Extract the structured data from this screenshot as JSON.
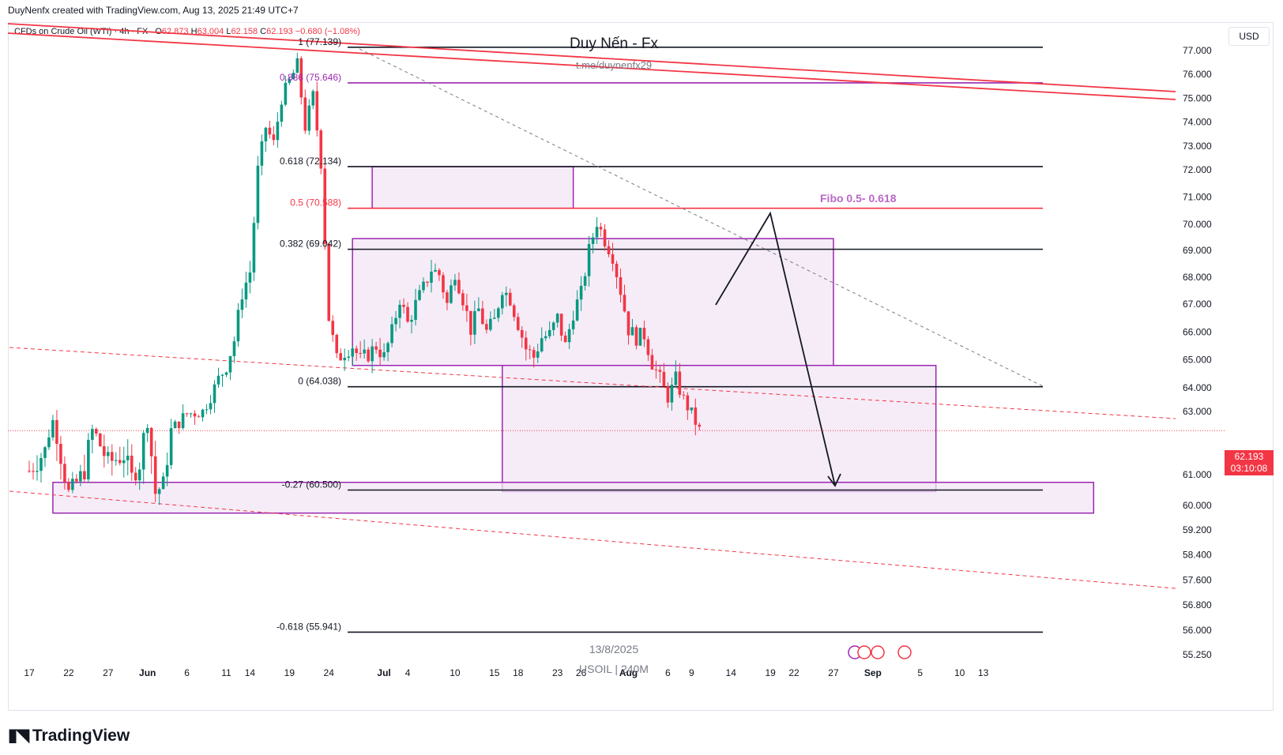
{
  "header": {
    "attribution": "DuyNenfx created with TradingView.com, Aug 13, 2025 21:49 UTC+7"
  },
  "legend": {
    "symbol": "CFDs on Crude Oil (WTI) · 4h · FX",
    "o_label": "O",
    "o": "62.873",
    "h_label": "H",
    "h": "63.004",
    "l_label": "L",
    "l": "62.158",
    "c_label": "C",
    "c": "62.193",
    "change": "−0.680 (−1.08%)"
  },
  "watermark": {
    "title": "Duy Nến - Fx",
    "link": "t.me/duynenfx29"
  },
  "bottom_labels": {
    "date": "13/8/2025",
    "ticker": "USOIL | 240M"
  },
  "price_axis": {
    "currency": "USD",
    "current_price": "62.193",
    "countdown": "03:10:08"
  },
  "colors": {
    "up": "#089981",
    "down": "#f23645",
    "purple": "#9c27b0",
    "zone_fill": "#f3e5f5",
    "grid": "#e0e3eb",
    "text": "#131722"
  },
  "brand": "TradingView",
  "chart_data": {
    "type": "candlestick",
    "title": "CFDs on Crude Oil (WTI)",
    "timeframe": "4h",
    "y_ticks": [
      77.0,
      76.0,
      75.0,
      74.0,
      73.0,
      72.0,
      71.0,
      70.0,
      69.0,
      68.0,
      67.0,
      66.0,
      65.0,
      64.0,
      63.0,
      61.0,
      60.0,
      59.2,
      58.4,
      57.6,
      56.8,
      56.0,
      55.25
    ],
    "y_tick_labels": [
      "77.000",
      "76.000",
      "75.000",
      "74.000",
      "73.000",
      "72.000",
      "71.000",
      "70.000",
      "69.000",
      "68.000",
      "67.000",
      "66.000",
      "65.000",
      "64.000",
      "63.000",
      "61.000",
      "60.000",
      "59.200",
      "58.400",
      "57.600",
      "56.800",
      "56.000",
      "55.250"
    ],
    "x_ticks": [
      {
        "label": "17",
        "day": 0
      },
      {
        "label": "22",
        "day": 5
      },
      {
        "label": "27",
        "day": 10
      },
      {
        "label": "Jun",
        "day": 15
      },
      {
        "label": "6",
        "day": 20
      },
      {
        "label": "11",
        "day": 25
      },
      {
        "label": "14",
        "day": 28
      },
      {
        "label": "19",
        "day": 33
      },
      {
        "label": "24",
        "day": 38
      },
      {
        "label": "Jul",
        "day": 45
      },
      {
        "label": "4",
        "day": 48
      },
      {
        "label": "10",
        "day": 54
      },
      {
        "label": "15",
        "day": 59
      },
      {
        "label": "18",
        "day": 62
      },
      {
        "label": "23",
        "day": 67
      },
      {
        "label": "26",
        "day": 70
      },
      {
        "label": "Aug",
        "day": 76
      },
      {
        "label": "6",
        "day": 81
      },
      {
        "label": "9",
        "day": 84
      },
      {
        "label": "14",
        "day": 89
      },
      {
        "label": "19",
        "day": 94
      },
      {
        "label": "22",
        "day": 97
      },
      {
        "label": "27",
        "day": 102
      },
      {
        "label": "Sep",
        "day": 107
      },
      {
        "label": "5",
        "day": 113
      },
      {
        "label": "10",
        "day": 118
      },
      {
        "label": "13",
        "day": 121
      }
    ],
    "fib_levels": [
      {
        "label": "1 (77.139)",
        "value": 77.139,
        "color": "#131722"
      },
      {
        "label": "0.886 (75.646)",
        "value": 75.646,
        "color": "#9c27b0"
      },
      {
        "label": "0.618 (72.134)",
        "value": 72.134,
        "color": "#131722"
      },
      {
        "label": "0.5 (70.588)",
        "value": 70.588,
        "color": "#f23645"
      },
      {
        "label": "0.382 (69.042)",
        "value": 69.042,
        "color": "#131722"
      },
      {
        "label": "0 (64.038)",
        "value": 64.038,
        "color": "#131722"
      },
      {
        "label": "-0.27 (60.500)",
        "value": 60.5,
        "color": "#131722"
      },
      {
        "label": "-0.618 (55.941)",
        "value": 55.941,
        "color": "#131722"
      }
    ],
    "fib_zone_label": "Fibo 0.5- 0.618",
    "price_path": [
      [
        0,
        61.1
      ],
      [
        2,
        61.6
      ],
      [
        3,
        62.6
      ],
      [
        5,
        60.4
      ],
      [
        7,
        61.1
      ],
      [
        8,
        62.2
      ],
      [
        10,
        61.3
      ],
      [
        12,
        61.5
      ],
      [
        13,
        60.9
      ],
      [
        14,
        61.3
      ],
      [
        15,
        62.6
      ],
      [
        16,
        60.4
      ],
      [
        17,
        60.7
      ],
      [
        18,
        62.2
      ],
      [
        20,
        62.9
      ],
      [
        22,
        63.0
      ],
      [
        24,
        64.3
      ],
      [
        25,
        64.8
      ],
      [
        26,
        65.7
      ],
      [
        27,
        67.4
      ],
      [
        28,
        68.2
      ],
      [
        29,
        72.0
      ],
      [
        30,
        73.8
      ],
      [
        31,
        73.1
      ],
      [
        32,
        75.0
      ],
      [
        33,
        75.7
      ],
      [
        34,
        76.4
      ],
      [
        35,
        73.8
      ],
      [
        36,
        75.1
      ],
      [
        37,
        72.3
      ],
      [
        38,
        66.5
      ],
      [
        39,
        65.0
      ],
      [
        40,
        65.3
      ],
      [
        41,
        65.5
      ],
      [
        42,
        65.0
      ],
      [
        43,
        65.2
      ],
      [
        44,
        65.5
      ],
      [
        45,
        65.1
      ],
      [
        46,
        66.0
      ],
      [
        47,
        67.2
      ],
      [
        48,
        66.3
      ],
      [
        49,
        67.0
      ],
      [
        50,
        67.6
      ],
      [
        51,
        68.3
      ],
      [
        52,
        68.1
      ],
      [
        53,
        67.0
      ],
      [
        54,
        68.2
      ],
      [
        55,
        67.2
      ],
      [
        56,
        66.1
      ],
      [
        57,
        66.8
      ],
      [
        58,
        66.0
      ],
      [
        59,
        66.4
      ],
      [
        60,
        67.6
      ],
      [
        61,
        67.2
      ],
      [
        62,
        66.3
      ],
      [
        63,
        65.4
      ],
      [
        64,
        65.1
      ],
      [
        65,
        65.8
      ],
      [
        66,
        65.9
      ],
      [
        67,
        66.5
      ],
      [
        68,
        65.5
      ],
      [
        69,
        66.7
      ],
      [
        70,
        67.4
      ],
      [
        71,
        69.0
      ],
      [
        72,
        70.1
      ],
      [
        73,
        69.4
      ],
      [
        74,
        68.8
      ],
      [
        75,
        67.5
      ],
      [
        76,
        66.1
      ],
      [
        77,
        65.8
      ],
      [
        78,
        65.9
      ],
      [
        79,
        64.9
      ],
      [
        80,
        64.3
      ],
      [
        81,
        63.6
      ],
      [
        82,
        64.3
      ],
      [
        83,
        63.5
      ],
      [
        84,
        62.9
      ],
      [
        85,
        62.2
      ]
    ],
    "current_price": 62.193
  }
}
